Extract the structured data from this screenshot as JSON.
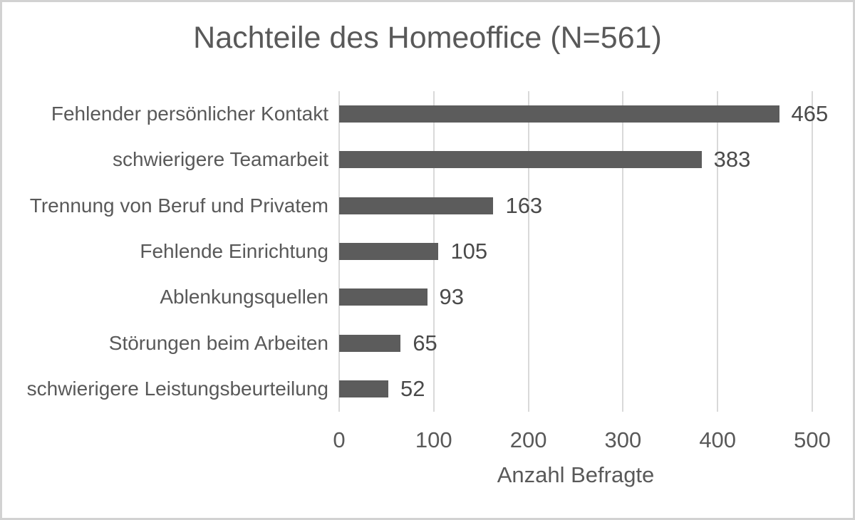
{
  "chart_data": {
    "type": "bar",
    "orientation": "horizontal",
    "title": "Nachteile des Homeoffice (N=561)",
    "xlabel": "Anzahl Befragte",
    "ylabel": "",
    "categories": [
      "Fehlender persönlicher Kontakt",
      "schwierigere Teamarbeit",
      "Trennung von Beruf und Privatem",
      "Fehlende Einrichtung",
      "Ablenkungsquellen",
      "Störungen beim Arbeiten",
      "schwierigere Leistungsbeurteilung"
    ],
    "values": [
      465,
      383,
      163,
      105,
      93,
      65,
      52
    ],
    "data_labels": [
      465,
      383,
      163,
      105,
      93,
      65,
      52
    ],
    "xlim": [
      0,
      500
    ],
    "xticks": [
      0,
      100,
      200,
      300,
      400,
      500
    ],
    "grid": "vertical-gridlines-on",
    "legend": "none",
    "colors": {
      "bar": "#5c5c5c",
      "gridline": "#d9d9d9",
      "text": "#595959",
      "value_label": "#4a4a4a",
      "background": "#ffffff",
      "frame_border": "#d2d2d2"
    }
  }
}
